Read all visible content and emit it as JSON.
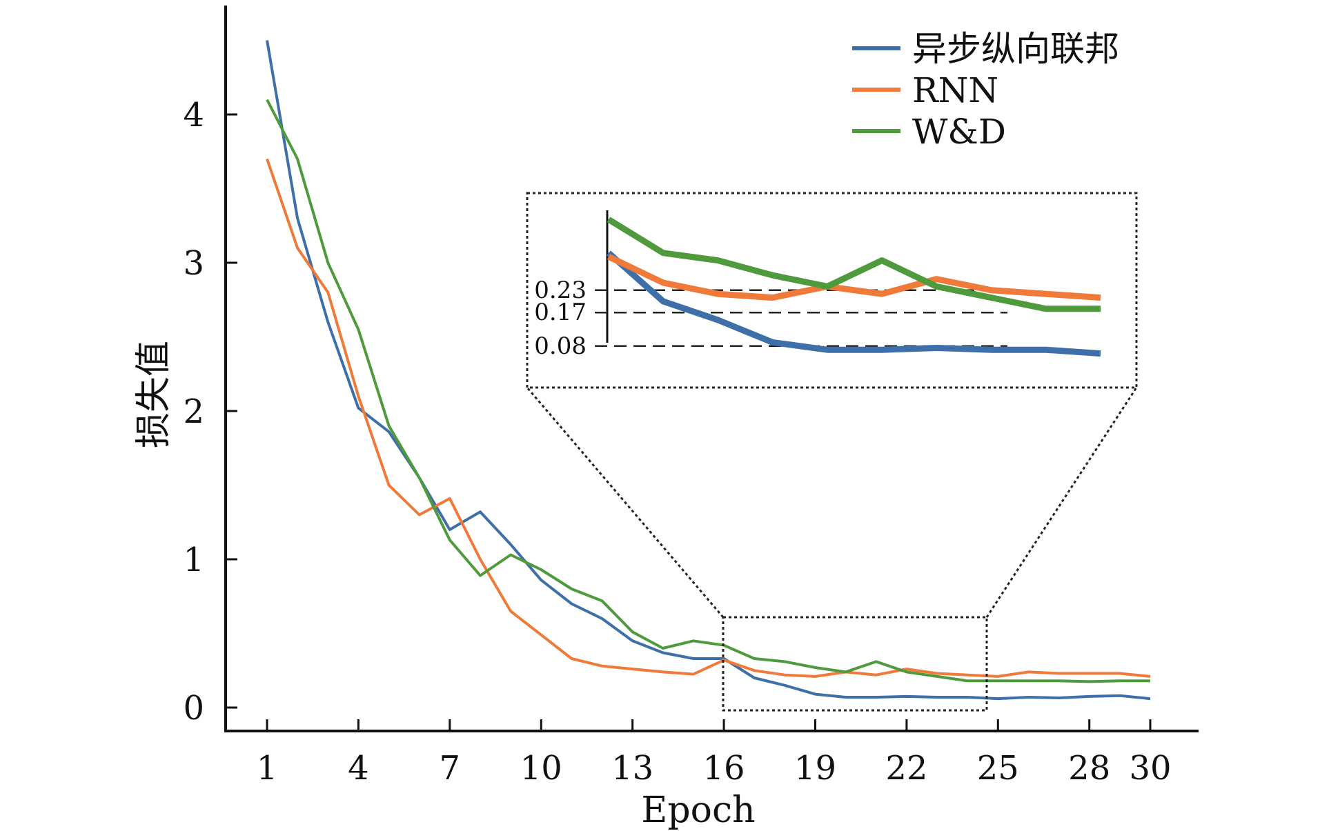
{
  "chart_data": {
    "type": "line",
    "xlabel": "Epoch",
    "ylabel": "损失值",
    "x": [
      1,
      2,
      3,
      4,
      5,
      6,
      7,
      8,
      9,
      10,
      11,
      12,
      13,
      14,
      15,
      16,
      17,
      18,
      19,
      20,
      21,
      22,
      23,
      24,
      25,
      26,
      27,
      28,
      29,
      30
    ],
    "xticks": [
      1,
      4,
      7,
      10,
      13,
      16,
      19,
      22,
      25,
      28,
      30
    ],
    "yticks": [
      0,
      1,
      2,
      3,
      4
    ],
    "xlim": [
      1,
      30
    ],
    "ylim": [
      0,
      4.6
    ],
    "grid": false,
    "legend_position": "top-right",
    "series": [
      {
        "name": "异步纵向联邦",
        "color": "#3f6fa8",
        "values": [
          4.5,
          3.3,
          2.6,
          2.02,
          1.86,
          1.55,
          1.2,
          1.32,
          1.1,
          0.86,
          0.7,
          0.6,
          0.45,
          0.37,
          0.33,
          0.33,
          0.2,
          0.15,
          0.09,
          0.07,
          0.07,
          0.075,
          0.07,
          0.07,
          0.06,
          0.07,
          0.065,
          0.075,
          0.08,
          0.06
        ]
      },
      {
        "name": "RNN",
        "color": "#ef7a3a",
        "values": [
          3.7,
          3.1,
          2.8,
          2.1,
          1.5,
          1.3,
          1.41,
          1.0,
          0.65,
          0.49,
          0.33,
          0.28,
          0.26,
          0.24,
          0.225,
          0.32,
          0.25,
          0.22,
          0.21,
          0.24,
          0.22,
          0.26,
          0.23,
          0.22,
          0.21,
          0.24,
          0.23,
          0.23,
          0.23,
          0.21
        ]
      },
      {
        "name": "W&D",
        "color": "#4f9a3c",
        "values": [
          4.1,
          3.7,
          3.0,
          2.55,
          1.9,
          1.55,
          1.13,
          0.89,
          1.03,
          0.93,
          0.8,
          0.72,
          0.51,
          0.4,
          0.45,
          0.42,
          0.33,
          0.31,
          0.27,
          0.24,
          0.31,
          0.24,
          0.21,
          0.18,
          0.18,
          0.18,
          0.18,
          0.175,
          0.18,
          0.18
        ]
      }
    ],
    "inset": {
      "x_range": [
        16,
        25
      ],
      "y_range": [
        0,
        0.6
      ],
      "reference_labels": [
        "0.23",
        "0.17",
        "0.08"
      ],
      "reference_values": [
        0.23,
        0.17,
        0.08
      ]
    }
  }
}
